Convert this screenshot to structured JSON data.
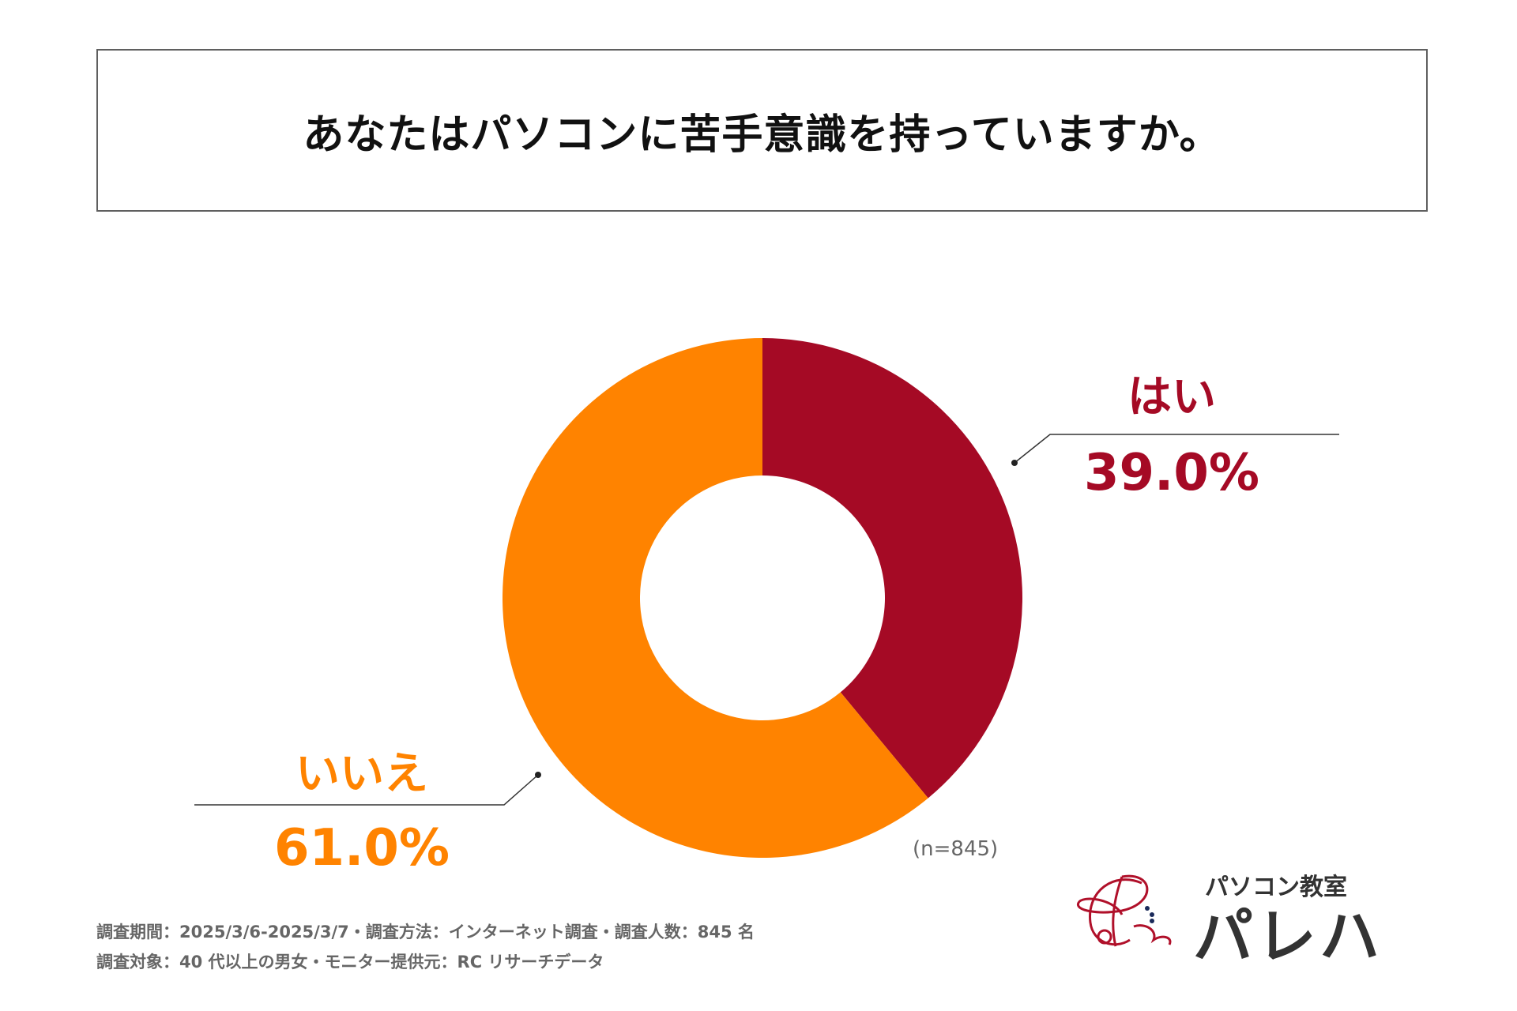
{
  "chart_data": {
    "type": "pie",
    "variant": "donut",
    "title": "あなたはパソコンに苦手意識を持っていますか。",
    "slices": [
      {
        "label": "はい",
        "value": 39.0,
        "display": "39.0%",
        "color": "#A50A25"
      },
      {
        "label": "いいえ",
        "value": 61.0,
        "display": "61.0%",
        "color": "#FF8300"
      }
    ],
    "sample_note": "(n=845)",
    "start_angle": "12 o'clock, clockwise"
  },
  "footer": {
    "line1": "調査期間：2025/3/6-2025/3/7・調査方法：インターネット調査・調査人数：845 名",
    "line2": "調査対象：40 代以上の男女・モニター提供元：RC リサーチデータ"
  },
  "logo": {
    "subtitle": "パソコン教室",
    "name": "パレハ"
  }
}
